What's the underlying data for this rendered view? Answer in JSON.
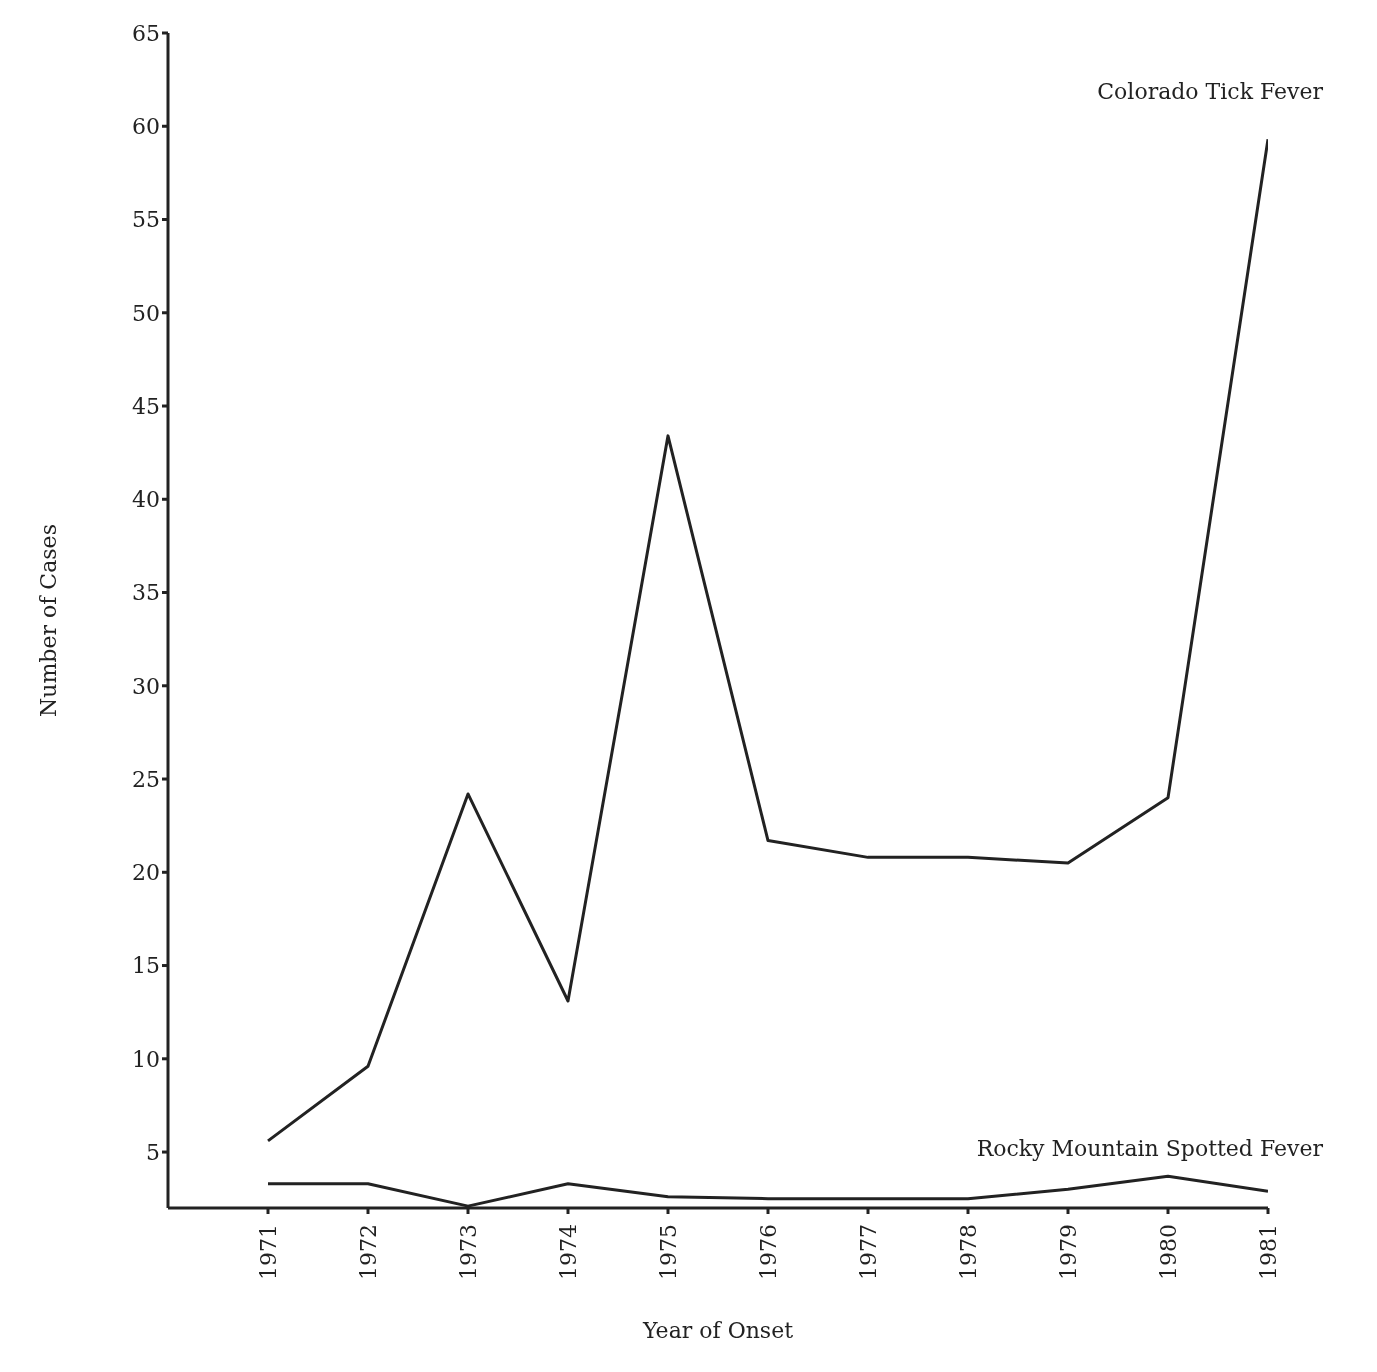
{
  "chart_data": {
    "type": "line",
    "xlabel": "Year of Onset",
    "ylabel": "Number of Cases",
    "x": [
      1971,
      1972,
      1973,
      1974,
      1975,
      1976,
      1977,
      1978,
      1979,
      1980,
      1981
    ],
    "series": [
      {
        "name": "Colorado Tick Fever",
        "color": "#222222",
        "values": [
          5.6,
          9.6,
          24.2,
          13.1,
          43.4,
          21.7,
          20.8,
          20.8,
          20.5,
          24.0,
          59.3
        ]
      },
      {
        "name": "Rocky Mountain Spotted Fever",
        "color": "#222222",
        "values": [
          3.3,
          3.3,
          2.1,
          3.3,
          2.6,
          2.5,
          2.5,
          2.5,
          3.0,
          3.7,
          2.9
        ]
      }
    ],
    "xlim": [
      1970,
      1981
    ],
    "xticks": [
      1971,
      1972,
      1973,
      1974,
      1975,
      1976,
      1977,
      1978,
      1979,
      1980,
      1981
    ],
    "ylim": [
      2,
      65
    ],
    "yticks": [
      5,
      10,
      15,
      20,
      25,
      30,
      35,
      40,
      45,
      50,
      55,
      60,
      65
    ],
    "grid": false,
    "legend": false,
    "marker": "none",
    "line_style": "solid"
  }
}
